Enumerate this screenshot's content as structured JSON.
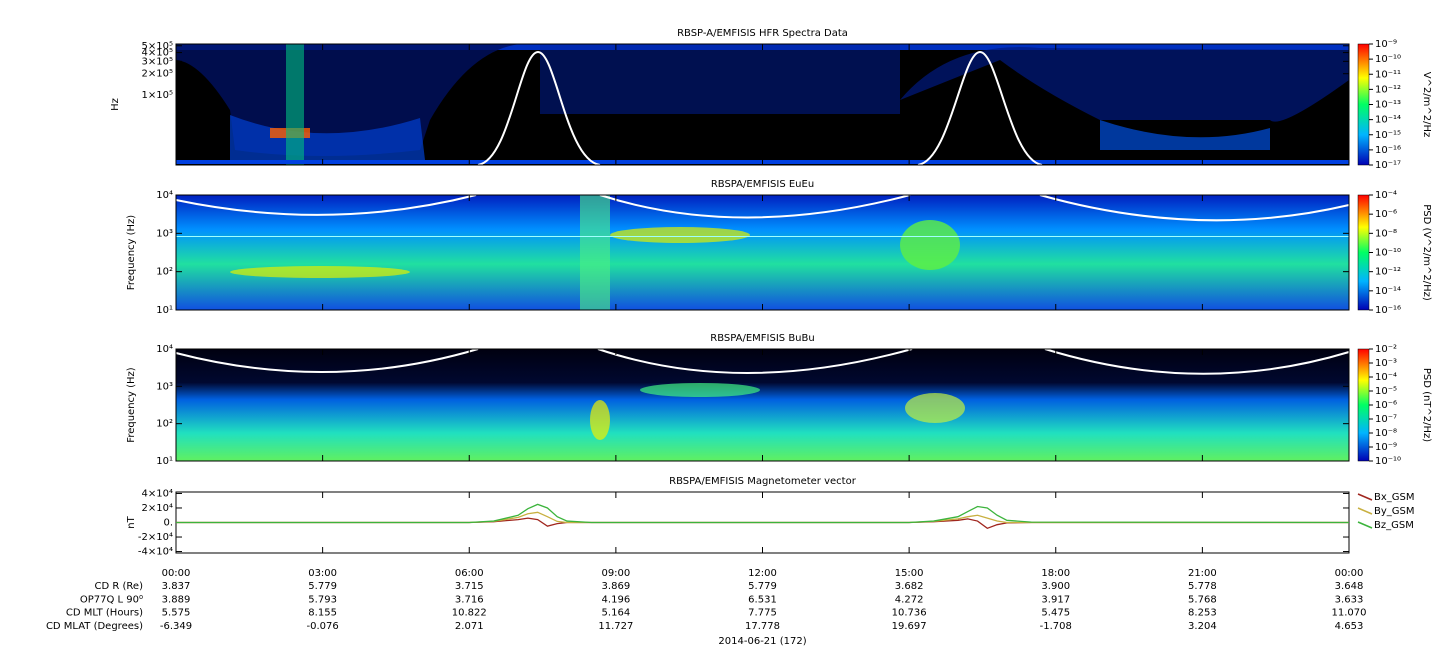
{
  "chart_data": [
    {
      "type": "spectrogram",
      "title": "RBSP-A/EMFISIS  HFR Spectra Data",
      "ylabel": "Hz",
      "log_y": true,
      "ylim": [
        10000,
        530000
      ],
      "yticks": [
        {
          "value": 100000,
          "label": "1×10⁵"
        },
        {
          "value": 200000,
          "label": "2×10⁵"
        },
        {
          "value": 300000,
          "label": "3×10⁵"
        },
        {
          "value": 400000,
          "label": "4×10⁵"
        },
        {
          "value": 500000,
          "label": "5×10⁵"
        }
      ],
      "colorbar": {
        "label": "V^2/m^2/Hz",
        "log": true,
        "clim": [
          1e-17,
          1e-09
        ],
        "ticks": [
          {
            "value": 1e-09,
            "label": "10⁻⁹"
          },
          {
            "value": 1e-10,
            "label": "10⁻¹⁰"
          },
          {
            "value": 1e-11,
            "label": "10⁻¹¹"
          },
          {
            "value": 1e-12,
            "label": "10⁻¹²"
          },
          {
            "value": 1e-13,
            "label": "10⁻¹³"
          },
          {
            "value": 1e-14,
            "label": "10⁻¹⁴"
          },
          {
            "value": 1e-15,
            "label": "10⁻¹⁵"
          },
          {
            "value": 1e-16,
            "label": "10⁻¹⁶"
          },
          {
            "value": 1e-17,
            "label": "10⁻¹⁷"
          }
        ]
      }
    },
    {
      "type": "spectrogram",
      "title": "RBSPA/EMFISIS  EuEu",
      "ylabel": "Frequency (Hz)",
      "log_y": true,
      "ylim": [
        10,
        10000
      ],
      "yticks": [
        {
          "value": 10,
          "label": "10¹"
        },
        {
          "value": 100,
          "label": "10²"
        },
        {
          "value": 1000,
          "label": "10³"
        },
        {
          "value": 10000,
          "label": "10⁴"
        }
      ],
      "colorbar": {
        "label": "PSD (V^2/m^2/Hz)",
        "log": true,
        "clim": [
          1e-16,
          0.0001
        ],
        "ticks": [
          {
            "value": 0.0001,
            "label": "10⁻⁴"
          },
          {
            "value": 1e-06,
            "label": "10⁻⁶"
          },
          {
            "value": 1e-08,
            "label": "10⁻⁸"
          },
          {
            "value": 1e-10,
            "label": "10⁻¹⁰"
          },
          {
            "value": 1e-12,
            "label": "10⁻¹²"
          },
          {
            "value": 1e-14,
            "label": "10⁻¹⁴"
          },
          {
            "value": 1e-16,
            "label": "10⁻¹⁶"
          }
        ]
      }
    },
    {
      "type": "spectrogram",
      "title": "RBSPA/EMFISIS  BuBu",
      "ylabel": "Frequency (Hz)",
      "log_y": true,
      "ylim": [
        10,
        10000
      ],
      "yticks": [
        {
          "value": 10,
          "label": "10¹"
        },
        {
          "value": 100,
          "label": "10²"
        },
        {
          "value": 1000,
          "label": "10³"
        },
        {
          "value": 10000,
          "label": "10⁴"
        }
      ],
      "colorbar": {
        "label": "PSD (nT^2/Hz)",
        "log": true,
        "clim": [
          1e-10,
          0.01
        ],
        "ticks": [
          {
            "value": 0.01,
            "label": "10⁻²"
          },
          {
            "value": 0.001,
            "label": "10⁻³"
          },
          {
            "value": 0.0001,
            "label": "10⁻⁴"
          },
          {
            "value": 1e-05,
            "label": "10⁻⁵"
          },
          {
            "value": 1e-06,
            "label": "10⁻⁶"
          },
          {
            "value": 1e-07,
            "label": "10⁻⁷"
          },
          {
            "value": 1e-08,
            "label": "10⁻⁸"
          },
          {
            "value": 1e-09,
            "label": "10⁻⁹"
          },
          {
            "value": 1e-10,
            "label": "10⁻¹⁰"
          }
        ]
      }
    },
    {
      "type": "line",
      "title": "RBSPA/EMFISIS  Magnetometer vector",
      "ylabel": "nT",
      "ylim": [
        -42000,
        42000
      ],
      "yticks": [
        {
          "value": 40000,
          "label": "4×10⁴"
        },
        {
          "value": 20000,
          "label": "2×10⁴"
        },
        {
          "value": 0,
          "label": "0."
        },
        {
          "value": -20000,
          "label": "-2×10⁴"
        },
        {
          "value": -40000,
          "label": "-4×10⁴"
        }
      ],
      "xlim": [
        0,
        24
      ],
      "xticks": [
        {
          "value": 0,
          "label": "00:00"
        },
        {
          "value": 3,
          "label": "03:00"
        },
        {
          "value": 6,
          "label": "06:00"
        },
        {
          "value": 9,
          "label": "09:00"
        },
        {
          "value": 12,
          "label": "12:00"
        },
        {
          "value": 15,
          "label": "15:00"
        },
        {
          "value": 18,
          "label": "18:00"
        },
        {
          "value": 21,
          "label": "21:00"
        },
        {
          "value": 24,
          "label": "00:00"
        }
      ],
      "xlabel": "2014-06-21 (172)",
      "x": [
        0,
        6,
        6.5,
        7,
        7.2,
        7.4,
        7.6,
        7.8,
        8,
        8.5,
        9,
        15,
        15.5,
        16,
        16.2,
        16.4,
        16.6,
        16.8,
        17,
        17.5,
        24
      ],
      "series": [
        {
          "name": "Bx_GSM",
          "color": "#a0261e",
          "values": [
            0,
            0,
            1000,
            4000,
            6000,
            4000,
            -5000,
            -1500,
            0,
            0,
            0,
            0,
            1000,
            3000,
            5000,
            2000,
            -8000,
            -3000,
            -500,
            0,
            0
          ]
        },
        {
          "name": "By_GSM",
          "color": "#c8b040",
          "values": [
            0,
            0,
            1500,
            7000,
            12000,
            14000,
            8000,
            1500,
            0,
            0,
            0,
            0,
            1500,
            5000,
            8000,
            10000,
            6000,
            2000,
            0,
            0,
            0
          ]
        },
        {
          "name": "Bz_GSM",
          "color": "#3cb43c",
          "values": [
            0,
            0,
            2000,
            10000,
            19000,
            25000,
            20000,
            8000,
            2000,
            0,
            0,
            0,
            2000,
            8000,
            15000,
            22000,
            20000,
            10000,
            3000,
            500,
            0
          ]
        }
      ],
      "ephemeris": [
        {
          "label": "CD R (Re)",
          "values": [
            "3.837",
            "5.779",
            "3.715",
            "3.869",
            "5.779",
            "3.682",
            "3.900",
            "5.778",
            "3.648"
          ]
        },
        {
          "label": "OP77Q L 90⁰",
          "values": [
            "3.889",
            "5.793",
            "3.716",
            "4.196",
            "6.531",
            "4.272",
            "3.917",
            "5.768",
            "3.633"
          ]
        },
        {
          "label": "CD MLT (Hours)",
          "values": [
            "5.575",
            "8.155",
            "10.822",
            "5.164",
            "7.775",
            "10.736",
            "5.475",
            "8.253",
            "11.070"
          ]
        },
        {
          "label": "CD MLAT (Degrees)",
          "values": [
            "-6.349",
            "-0.076",
            "2.071",
            "11.727",
            "17.778",
            "19.697",
            "-1.708",
            "3.204",
            "4.653"
          ]
        }
      ]
    }
  ]
}
